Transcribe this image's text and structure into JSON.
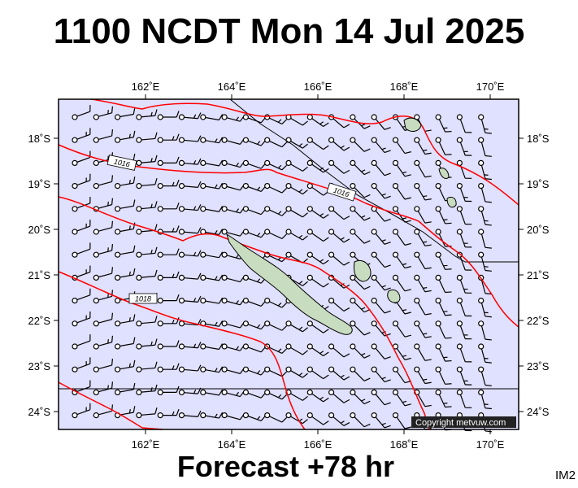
{
  "title": "1100 NCDT Mon 14 Jul 2025",
  "footer": "Forecast +78 hr",
  "corner_label": "IM2",
  "copyright": "Copyright metvuw.com",
  "map": {
    "lon_labels": [
      "162˚E",
      "164˚E",
      "166˚E",
      "168˚E",
      "170˚E"
    ],
    "lat_labels": [
      "18˚S",
      "19˚S",
      "20˚S",
      "21˚S",
      "22˚S",
      "23˚S",
      "24˚S"
    ],
    "isobar_labels": [
      "1016",
      "1016",
      "1018"
    ],
    "colors": {
      "ocean": "#e0e0ff",
      "isobar": "#ff0000",
      "land": "#c8dcc0",
      "frame": "#000000"
    }
  }
}
